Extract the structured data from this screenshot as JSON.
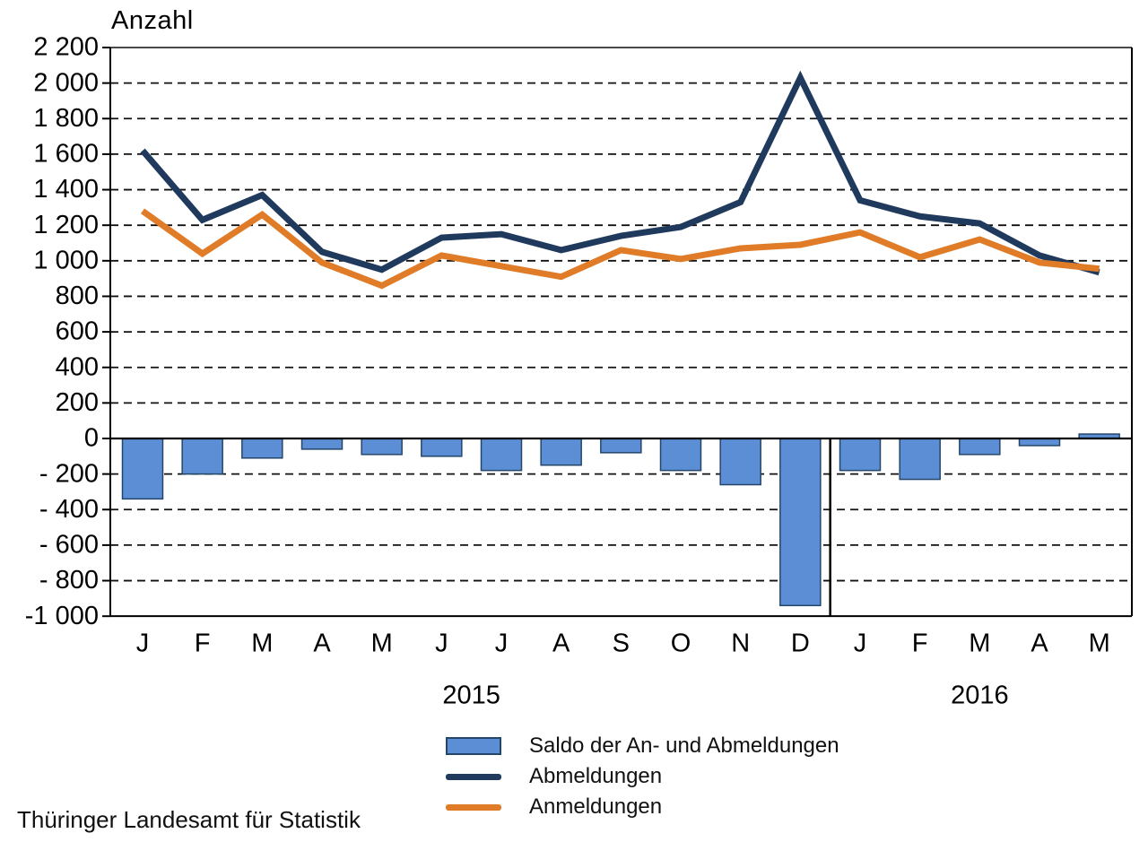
{
  "footer": "Thüringer Landesamt für Statistik",
  "colors": {
    "saldo_fill": "#5b8ed5",
    "saldo_border": "#24466b",
    "abmeldungen": "#1f3a5c",
    "anmeldungen": "#e07b28",
    "grid": "#111111",
    "axis": "#000000",
    "top_border": "#4a4a4a"
  },
  "chart_data": {
    "type": "line+bar",
    "title": "Anzahl",
    "categories": [
      "J",
      "F",
      "M",
      "A",
      "M",
      "J",
      "J",
      "A",
      "S",
      "O",
      "N",
      "D",
      "J",
      "F",
      "M",
      "A",
      "M"
    ],
    "years": [
      {
        "label": "2015",
        "from": 0,
        "to": 11
      },
      {
        "label": "2016",
        "from": 12,
        "to": 16
      }
    ],
    "series": [
      {
        "name": "Saldo der An- und Abmeldungen",
        "type": "bar",
        "color": "#5b8ed5",
        "border_color": "#24466b",
        "values": [
          -340,
          -200,
          -110,
          -60,
          -90,
          -100,
          -180,
          -150,
          -80,
          -180,
          -260,
          -940,
          -180,
          -230,
          -90,
          -40,
          25
        ]
      },
      {
        "name": "Abmeldungen",
        "type": "line",
        "color": "#1f3a5c",
        "values": [
          1620,
          1230,
          1370,
          1050,
          950,
          1130,
          1150,
          1060,
          1140,
          1190,
          1330,
          2030,
          1340,
          1250,
          1210,
          1030,
          935
        ]
      },
      {
        "name": "Anmeldungen",
        "type": "line",
        "color": "#e07b28",
        "values": [
          1280,
          1040,
          1260,
          990,
          860,
          1030,
          970,
          910,
          1060,
          1010,
          1070,
          1090,
          1160,
          1020,
          1120,
          990,
          955
        ]
      }
    ],
    "ylim": [
      -1000,
      2200
    ],
    "ytick_step": 200,
    "ytick_labels": [
      "2 200",
      "2 000",
      "1 800",
      "1 600",
      "1 400",
      "1 200",
      "1 000",
      "800",
      "600",
      "400",
      "200",
      "0",
      "- 200",
      "- 400",
      "- 600",
      "- 800",
      "-1 000"
    ],
    "grid": "dashed-horizontal",
    "legend_position": "bottom"
  }
}
